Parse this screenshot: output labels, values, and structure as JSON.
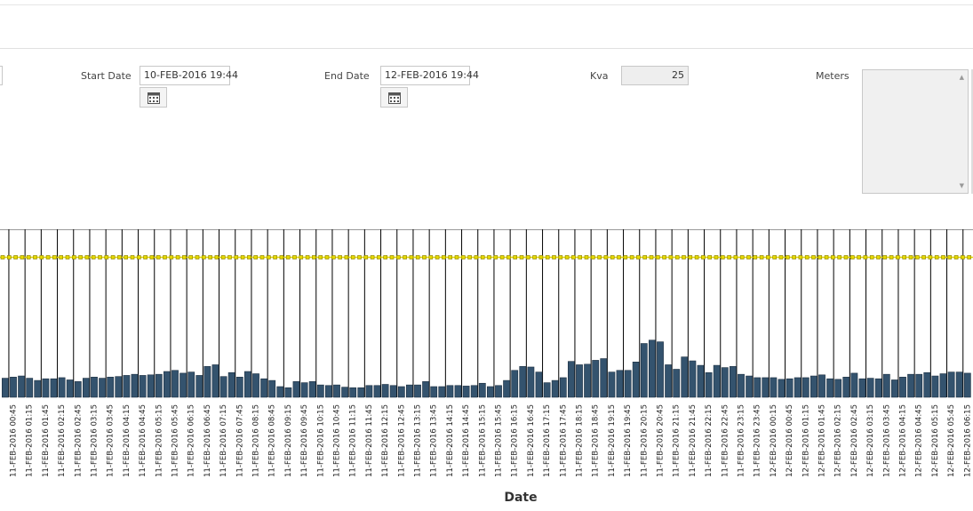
{
  "form": {
    "start_date": {
      "label": "Start Date",
      "value": "10-FEB-2016 19:44"
    },
    "end_date": {
      "label": "End Date",
      "value": "12-FEB-2016 19:44"
    },
    "kva": {
      "label": "Kva",
      "value": 25
    },
    "meters": {
      "label": "Meters"
    }
  },
  "chart_data": {
    "type": "bar",
    "x_label": "Date",
    "color": "#34536e",
    "threshold_color": "#e5d800",
    "ylim": [
      0,
      30
    ],
    "categories": [
      null,
      "11-FEB-2016 00:45",
      null,
      "11-FEB-2016 01:15",
      null,
      "11-FEB-2016 01:45",
      null,
      "11-FEB-2016 02:15",
      null,
      "11-FEB-2016 02:45",
      null,
      "11-FEB-2016 03:15",
      null,
      "11-FEB-2016 03:45",
      null,
      "11-FEB-2016 04:15",
      null,
      "11-FEB-2016 04:45",
      null,
      "11-FEB-2016 05:15",
      null,
      "11-FEB-2016 05:45",
      null,
      "11-FEB-2016 06:15",
      null,
      "11-FEB-2016 06:45",
      null,
      "11-FEB-2016 07:15",
      null,
      "11-FEB-2016 07:45",
      null,
      "11-FEB-2016 08:15",
      null,
      "11-FEB-2016 08:45",
      null,
      "11-FEB-2016 09:15",
      null,
      "11-FEB-2016 09:45",
      null,
      "11-FEB-2016 10:15",
      null,
      "11-FEB-2016 10:45",
      null,
      "11-FEB-2016 11:15",
      null,
      "11-FEB-2016 11:45",
      null,
      "11-FEB-2016 12:15",
      null,
      "11-FEB-2016 12:45",
      null,
      "11-FEB-2016 13:15",
      null,
      "11-FEB-2016 13:45",
      null,
      "11-FEB-2016 14:15",
      null,
      "11-FEB-2016 14:45",
      null,
      "11-FEB-2016 15:15",
      null,
      "11-FEB-2016 15:45",
      null,
      "11-FEB-2016 16:15",
      null,
      "11-FEB-2016 16:45",
      null,
      "11-FEB-2016 17:15",
      null,
      "11-FEB-2016 17:45",
      null,
      "11-FEB-2016 18:15",
      null,
      "11-FEB-2016 18:45",
      null,
      "11-FEB-2016 19:15",
      null,
      "11-FEB-2016 19:45",
      null,
      "11-FEB-2016 20:15",
      null,
      "11-FEB-2016 20:45",
      null,
      "11-FEB-2016 21:15",
      null,
      "11-FEB-2016 21:45",
      null,
      "11-FEB-2016 22:15",
      null,
      "11-FEB-2016 22:45",
      null,
      "11-FEB-2016 23:15",
      null,
      "11-FEB-2016 23:45",
      null,
      "12-FEB-2016 00:15",
      null,
      "12-FEB-2016 00:45",
      null,
      "12-FEB-2016 01:15",
      null,
      "12-FEB-2016 01:45",
      null,
      "12-FEB-2016 02:15",
      null,
      "12-FEB-2016 02:45",
      null,
      "12-FEB-2016 03:15",
      null,
      "12-FEB-2016 03:45",
      null,
      "12-FEB-2016 04:15",
      null,
      "12-FEB-2016 04:45",
      null,
      "12-FEB-2016 05:15",
      null,
      "12-FEB-2016 05:45",
      null,
      "12-FEB-2016 06:15"
    ],
    "values": [
      3.4,
      3.6,
      3.8,
      3.4,
      3.0,
      3.3,
      3.3,
      3.5,
      3.1,
      2.8,
      3.4,
      3.6,
      3.4,
      3.6,
      3.7,
      3.9,
      4.1,
      3.9,
      4.0,
      4.1,
      4.6,
      4.8,
      4.3,
      4.5,
      3.9,
      5.5,
      5.8,
      3.7,
      4.4,
      3.6,
      4.6,
      4.2,
      3.3,
      3.0,
      1.9,
      1.7,
      2.8,
      2.6,
      2.8,
      2.2,
      2.1,
      2.2,
      1.8,
      1.7,
      1.7,
      2.1,
      2.1,
      2.3,
      2.1,
      1.9,
      2.2,
      2.2,
      2.8,
      1.9,
      1.9,
      2.1,
      2.1,
      2.0,
      2.1,
      2.5,
      1.9,
      2.1,
      3.0,
      4.8,
      5.5,
      5.4,
      4.5,
      2.6,
      3.0,
      3.5,
      6.4,
      5.8,
      5.9,
      6.6,
      6.9,
      4.5,
      4.8,
      4.8,
      6.3,
      9.6,
      10.2,
      9.9,
      5.8,
      5.0,
      7.2,
      6.5,
      5.7,
      4.4,
      5.7,
      5.3,
      5.5,
      4.1,
      3.8,
      3.5,
      3.5,
      3.5,
      3.2,
      3.3,
      3.5,
      3.5,
      3.8,
      4.0,
      3.3,
      3.2,
      3.6,
      4.3,
      3.3,
      3.4,
      3.3,
      4.1,
      3.1,
      3.6,
      4.1,
      4.1,
      4.4,
      3.8,
      4.2,
      4.5,
      4.5,
      4.3
    ]
  }
}
